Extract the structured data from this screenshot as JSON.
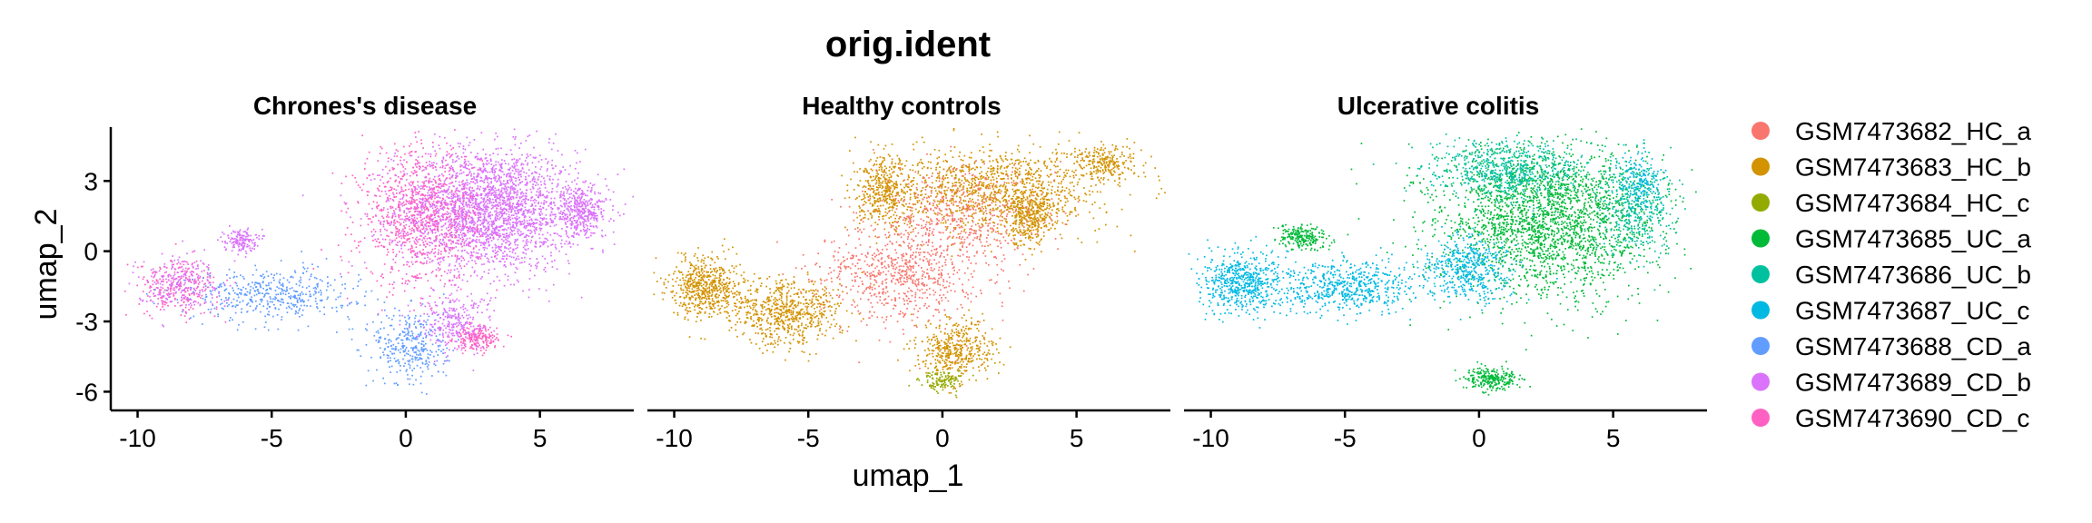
{
  "chart_data": {
    "type": "scatter",
    "title": "orig.ident",
    "xlabel": "umap_1",
    "ylabel": "umap_2",
    "xlim": [
      -11,
      8.5
    ],
    "ylim": [
      -6.8,
      5.3
    ],
    "x_ticks": [
      -10,
      -5,
      0,
      5
    ],
    "y_ticks": [
      -6,
      -3,
      0,
      3
    ],
    "x_tick_labels": [
      "-10",
      "-5",
      "0",
      "5"
    ],
    "y_tick_labels": [
      "-6",
      "-3",
      "0",
      "3"
    ],
    "grid": false,
    "legend_position": "right",
    "legend": [
      {
        "label": "GSM7473682_HC_a",
        "color": "#F8766D"
      },
      {
        "label": "GSM7473683_HC_b",
        "color": "#D39200"
      },
      {
        "label": "GSM7473684_HC_c",
        "color": "#93AA00"
      },
      {
        "label": "GSM7473685_UC_a",
        "color": "#00BA38"
      },
      {
        "label": "GSM7473686_UC_b",
        "color": "#00C19F"
      },
      {
        "label": "GSM7473687_UC_c",
        "color": "#00B9E3"
      },
      {
        "label": "GSM7473688_CD_a",
        "color": "#619CFF"
      },
      {
        "label": "GSM7473689_CD_b",
        "color": "#DB72FB"
      },
      {
        "label": "GSM7473690_CD_c",
        "color": "#FF61C3"
      }
    ],
    "panels": [
      {
        "title": "Chrones's disease",
        "regions": [
          {
            "color": "#DB72FB",
            "cx": 3.0,
            "cy": 1.8,
            "rx": 3.4,
            "ry": 2.6,
            "n": 2600
          },
          {
            "color": "#DB72FB",
            "cx": 6.5,
            "cy": 1.7,
            "rx": 1.0,
            "ry": 1.0,
            "n": 350
          },
          {
            "color": "#FF61C3",
            "cx": 0.5,
            "cy": 1.5,
            "rx": 2.2,
            "ry": 3.0,
            "n": 900
          },
          {
            "color": "#FF61C3",
            "cx": 2.6,
            "cy": -3.7,
            "rx": 0.8,
            "ry": 0.5,
            "n": 200
          },
          {
            "color": "#FF61C3",
            "cx": -8.5,
            "cy": -1.5,
            "rx": 1.5,
            "ry": 1.2,
            "n": 250
          },
          {
            "color": "#619CFF",
            "cx": -5.0,
            "cy": -1.8,
            "rx": 3.0,
            "ry": 1.1,
            "n": 450
          },
          {
            "color": "#619CFF",
            "cx": 0.2,
            "cy": -4.0,
            "rx": 1.4,
            "ry": 1.7,
            "n": 350
          },
          {
            "color": "#DB72FB",
            "cx": -6.2,
            "cy": 0.5,
            "rx": 0.6,
            "ry": 0.5,
            "n": 150
          },
          {
            "color": "#DB72FB",
            "cx": -8.5,
            "cy": -1.3,
            "rx": 1.6,
            "ry": 1.2,
            "n": 220
          },
          {
            "color": "#DB72FB",
            "cx": 1.8,
            "cy": -3.0,
            "rx": 1.4,
            "ry": 1.2,
            "n": 260
          }
        ]
      },
      {
        "title": "Healthy controls",
        "regions": [
          {
            "color": "#D39200",
            "cx": 2.0,
            "cy": 2.6,
            "rx": 3.8,
            "ry": 1.8,
            "n": 1200
          },
          {
            "color": "#D39200",
            "cx": -8.8,
            "cy": -1.5,
            "rx": 1.4,
            "ry": 1.3,
            "n": 600
          },
          {
            "color": "#D39200",
            "cx": -5.8,
            "cy": -2.6,
            "rx": 2.0,
            "ry": 1.4,
            "n": 650
          },
          {
            "color": "#D39200",
            "cx": -2.2,
            "cy": 2.5,
            "rx": 1.0,
            "ry": 1.5,
            "n": 400
          },
          {
            "color": "#D39200",
            "cx": 3.2,
            "cy": 1.5,
            "rx": 0.8,
            "ry": 1.2,
            "n": 300
          },
          {
            "color": "#D39200",
            "cx": 0.5,
            "cy": -4.2,
            "rx": 1.4,
            "ry": 1.3,
            "n": 450
          },
          {
            "color": "#D39200",
            "cx": 6.0,
            "cy": 3.8,
            "rx": 1.2,
            "ry": 0.8,
            "n": 250
          },
          {
            "color": "#F8766D",
            "cx": -1.5,
            "cy": -1.0,
            "rx": 3.0,
            "ry": 2.0,
            "n": 700
          },
          {
            "color": "#F8766D",
            "cx": 0.5,
            "cy": 1.5,
            "rx": 3.2,
            "ry": 2.0,
            "n": 500
          },
          {
            "color": "#93AA00",
            "cx": 0.0,
            "cy": -5.5,
            "rx": 0.8,
            "ry": 0.4,
            "n": 120
          }
        ]
      },
      {
        "title": "Ulcerative colitis",
        "regions": [
          {
            "color": "#00BA38",
            "cx": 2.5,
            "cy": 1.3,
            "rx": 4.0,
            "ry": 3.2,
            "n": 2400
          },
          {
            "color": "#00BA38",
            "cx": -6.6,
            "cy": 0.6,
            "rx": 0.9,
            "ry": 0.5,
            "n": 220
          },
          {
            "color": "#00BA38",
            "cx": 0.5,
            "cy": -5.4,
            "rx": 1.0,
            "ry": 0.5,
            "n": 250
          },
          {
            "color": "#00C19F",
            "cx": 1.0,
            "cy": 3.5,
            "rx": 2.8,
            "ry": 1.2,
            "n": 700
          },
          {
            "color": "#00C19F",
            "cx": 5.8,
            "cy": 2.0,
            "rx": 1.4,
            "ry": 2.0,
            "n": 450
          },
          {
            "color": "#00B9E3",
            "cx": -8.8,
            "cy": -1.3,
            "rx": 1.6,
            "ry": 1.3,
            "n": 600
          },
          {
            "color": "#00B9E3",
            "cx": -5.0,
            "cy": -1.5,
            "rx": 2.6,
            "ry": 1.1,
            "n": 600
          },
          {
            "color": "#00B9E3",
            "cx": -0.5,
            "cy": -0.7,
            "rx": 1.6,
            "ry": 1.4,
            "n": 500
          },
          {
            "color": "#00B9E3",
            "cx": 6.0,
            "cy": 3.0,
            "rx": 0.8,
            "ry": 1.2,
            "n": 150
          }
        ]
      }
    ]
  }
}
